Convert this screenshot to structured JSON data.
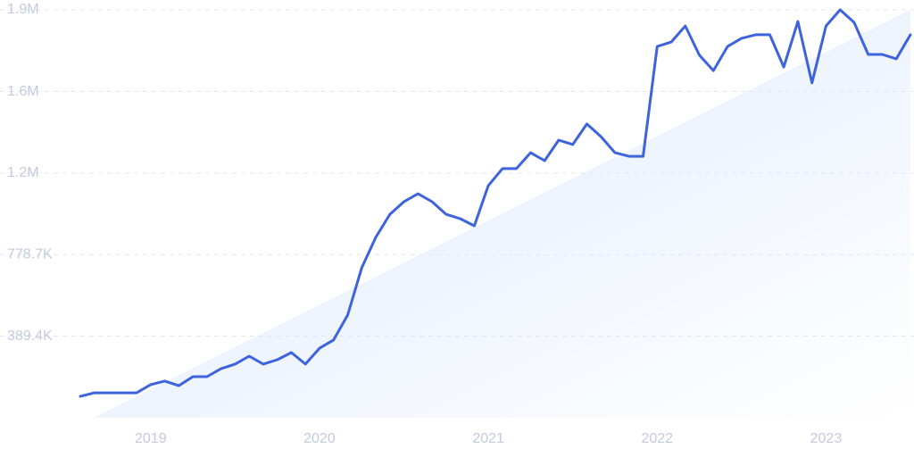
{
  "chart_data": {
    "type": "line",
    "categories": [
      null,
      null,
      null,
      null,
      null,
      "2019",
      null,
      null,
      null,
      null,
      null,
      null,
      null,
      null,
      null,
      null,
      null,
      "2020",
      null,
      null,
      null,
      null,
      null,
      null,
      null,
      null,
      null,
      null,
      null,
      "2021",
      null,
      null,
      null,
      null,
      null,
      null,
      null,
      null,
      null,
      null,
      null,
      "2022",
      null,
      null,
      null,
      null,
      null,
      null,
      null,
      null,
      null,
      null,
      null,
      "2023",
      null,
      null,
      null,
      null,
      null,
      null
    ],
    "values": [
      102000,
      119000,
      119000,
      119000,
      119000,
      158000,
      175000,
      153000,
      196000,
      196000,
      234000,
      256000,
      294000,
      256000,
      277000,
      311000,
      256000,
      332000,
      371000,
      490000,
      716000,
      861000,
      971000,
      1031000,
      1069000,
      1031000,
      971000,
      950000,
      916000,
      1108000,
      1189000,
      1189000,
      1265000,
      1227000,
      1325000,
      1304000,
      1402000,
      1342000,
      1265000,
      1248000,
      1248000,
      1772000,
      1793000,
      1870000,
      1730000,
      1657000,
      1772000,
      1811000,
      1828000,
      1828000,
      1674000,
      1891000,
      1598000,
      1870000,
      1947000,
      1887000,
      1734000,
      1734000,
      1713000,
      1828000
    ],
    "color": "#3d63dd",
    "ylim": [
      0,
      1947000
    ],
    "yticks": [
      {
        "value": 389400,
        "label": "389.4K"
      },
      {
        "value": 778700,
        "label": "778.7K"
      },
      {
        "value": 1168000,
        "label": "1.2M"
      },
      {
        "value": 1557000,
        "label": "1.6M"
      },
      {
        "value": 1947000,
        "label": "1.9M"
      }
    ],
    "grid": true
  }
}
